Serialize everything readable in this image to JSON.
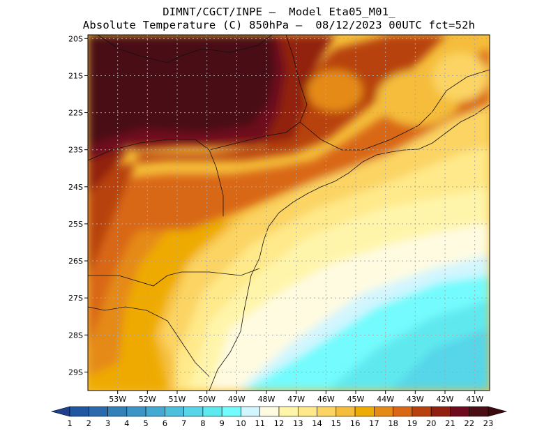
{
  "title": {
    "line1": "DIMNT/CGCT/INPE –  Model Eta05_M01_",
    "line2": "Absolute Temperature (C) 850hPa –  08/12/2023 00UTC fct=52h"
  },
  "map": {
    "lon_range": [
      -54,
      -40.5
    ],
    "lat_range": [
      -29.5,
      -19.9
    ],
    "lat_ticks": [
      {
        "value": -20,
        "label": "20S"
      },
      {
        "value": -21,
        "label": "21S"
      },
      {
        "value": -22,
        "label": "22S"
      },
      {
        "value": -23,
        "label": "23S"
      },
      {
        "value": -24,
        "label": "24S"
      },
      {
        "value": -25,
        "label": "25S"
      },
      {
        "value": -26,
        "label": "26S"
      },
      {
        "value": -27,
        "label": "27S"
      },
      {
        "value": -28,
        "label": "28S"
      },
      {
        "value": -29,
        "label": "29S"
      }
    ],
    "lon_ticks": [
      {
        "value": -53,
        "label": "53W"
      },
      {
        "value": -52,
        "label": "52W"
      },
      {
        "value": -51,
        "label": "51W"
      },
      {
        "value": -50,
        "label": "50W"
      },
      {
        "value": -49,
        "label": "49W"
      },
      {
        "value": -48,
        "label": "48W"
      },
      {
        "value": -47,
        "label": "47W"
      },
      {
        "value": -46,
        "label": "46W"
      },
      {
        "value": -45,
        "label": "45W"
      },
      {
        "value": -44,
        "label": "44W"
      },
      {
        "value": -43,
        "label": "43W"
      },
      {
        "value": -42,
        "label": "42W"
      },
      {
        "value": -41,
        "label": "41W"
      }
    ],
    "gridlines": true
  },
  "colorbar": {
    "levels": [
      "1",
      "2",
      "3",
      "4",
      "5",
      "6",
      "7",
      "8",
      "9",
      "10",
      "11",
      "12",
      "13",
      "14",
      "15",
      "16",
      "17",
      "18",
      "19",
      "20",
      "21",
      "22",
      "23"
    ],
    "colors": [
      "#1f3f8f",
      "#2156a0",
      "#2a6aad",
      "#3480b9",
      "#3c95c6",
      "#44aad1",
      "#4cc0dc",
      "#56d6e8",
      "#5ee9ef",
      "#73fbfd",
      "#d1f6fe",
      "#fffbe1",
      "#fff5aa",
      "#ffe98a",
      "#fbd464",
      "#f5bd3b",
      "#eeaa05",
      "#e58a17",
      "#d96715",
      "#b8420f",
      "#922010",
      "#6e0a1e",
      "#4a0e14",
      "#3a0a0e"
    ]
  }
}
